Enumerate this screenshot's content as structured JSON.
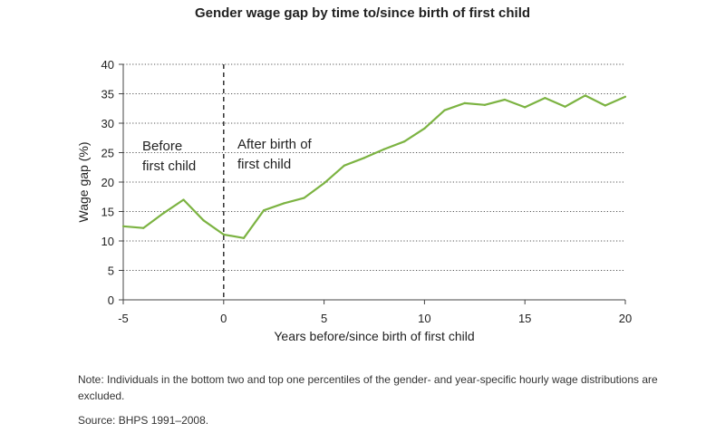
{
  "chart_data": {
    "type": "line",
    "title": "Gender wage gap by time to/since birth of first child",
    "xlabel": "Years before/since birth of first child",
    "ylabel": "Wage gap (%)",
    "xlim": [
      -5,
      20
    ],
    "ylim": [
      0,
      40
    ],
    "xticks": [
      "-5",
      "0",
      "5",
      "10",
      "15",
      "20"
    ],
    "yticks": [
      "0",
      "5",
      "10",
      "15",
      "20",
      "25",
      "30",
      "35",
      "40"
    ],
    "grid": "horizontal dotted",
    "reference_line_x": 0,
    "annotations": {
      "before": [
        "Before",
        "first child"
      ],
      "after": [
        "After birth of",
        "first child"
      ]
    },
    "line_color": "#7cb342",
    "series": [
      {
        "x": [
          -5,
          -4,
          -3,
          -2,
          -1,
          0,
          1,
          2,
          3,
          4,
          5,
          6,
          7,
          8,
          9,
          10,
          11,
          12,
          13,
          14,
          15,
          16,
          17,
          18,
          19,
          20
        ],
        "values": [
          12.5,
          12.2,
          14.7,
          17.0,
          13.5,
          11.1,
          10.5,
          15.2,
          16.4,
          17.3,
          19.8,
          22.8,
          24.1,
          25.6,
          26.9,
          29.1,
          32.2,
          33.4,
          33.1,
          34.0,
          32.7,
          34.3,
          32.8,
          34.7,
          33.0,
          34.5
        ]
      }
    ]
  },
  "note": "Note: Individuals in the bottom two and top one percentiles of the gender- and year-specific hourly wage distributions are excluded.",
  "source": "Source: BHPS 1991–2008."
}
